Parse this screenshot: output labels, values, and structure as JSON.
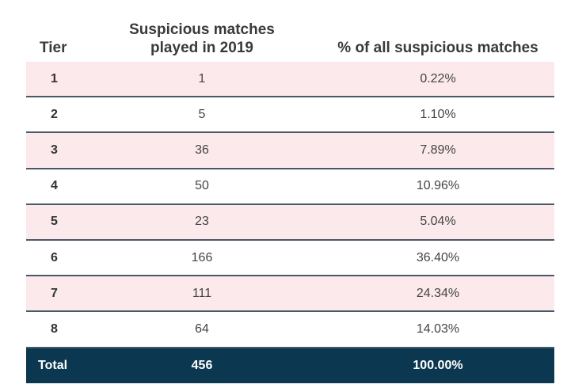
{
  "table": {
    "header": [
      "Tier",
      "Suspicious matches played in 2019",
      "% of all suspicious matches"
    ],
    "rows": [
      [
        "1",
        "1",
        "0.22%"
      ],
      [
        "2",
        "5",
        "1.10%"
      ],
      [
        "3",
        "36",
        "7.89%"
      ],
      [
        "4",
        "50",
        "10.96%"
      ],
      [
        "5",
        "23",
        "5.04%"
      ],
      [
        "6",
        "166",
        "36.40%"
      ],
      [
        "7",
        "111",
        "24.34%"
      ],
      [
        "8",
        "64",
        "14.03%"
      ]
    ],
    "total": [
      "Total",
      "456",
      "100.00%"
    ]
  }
}
